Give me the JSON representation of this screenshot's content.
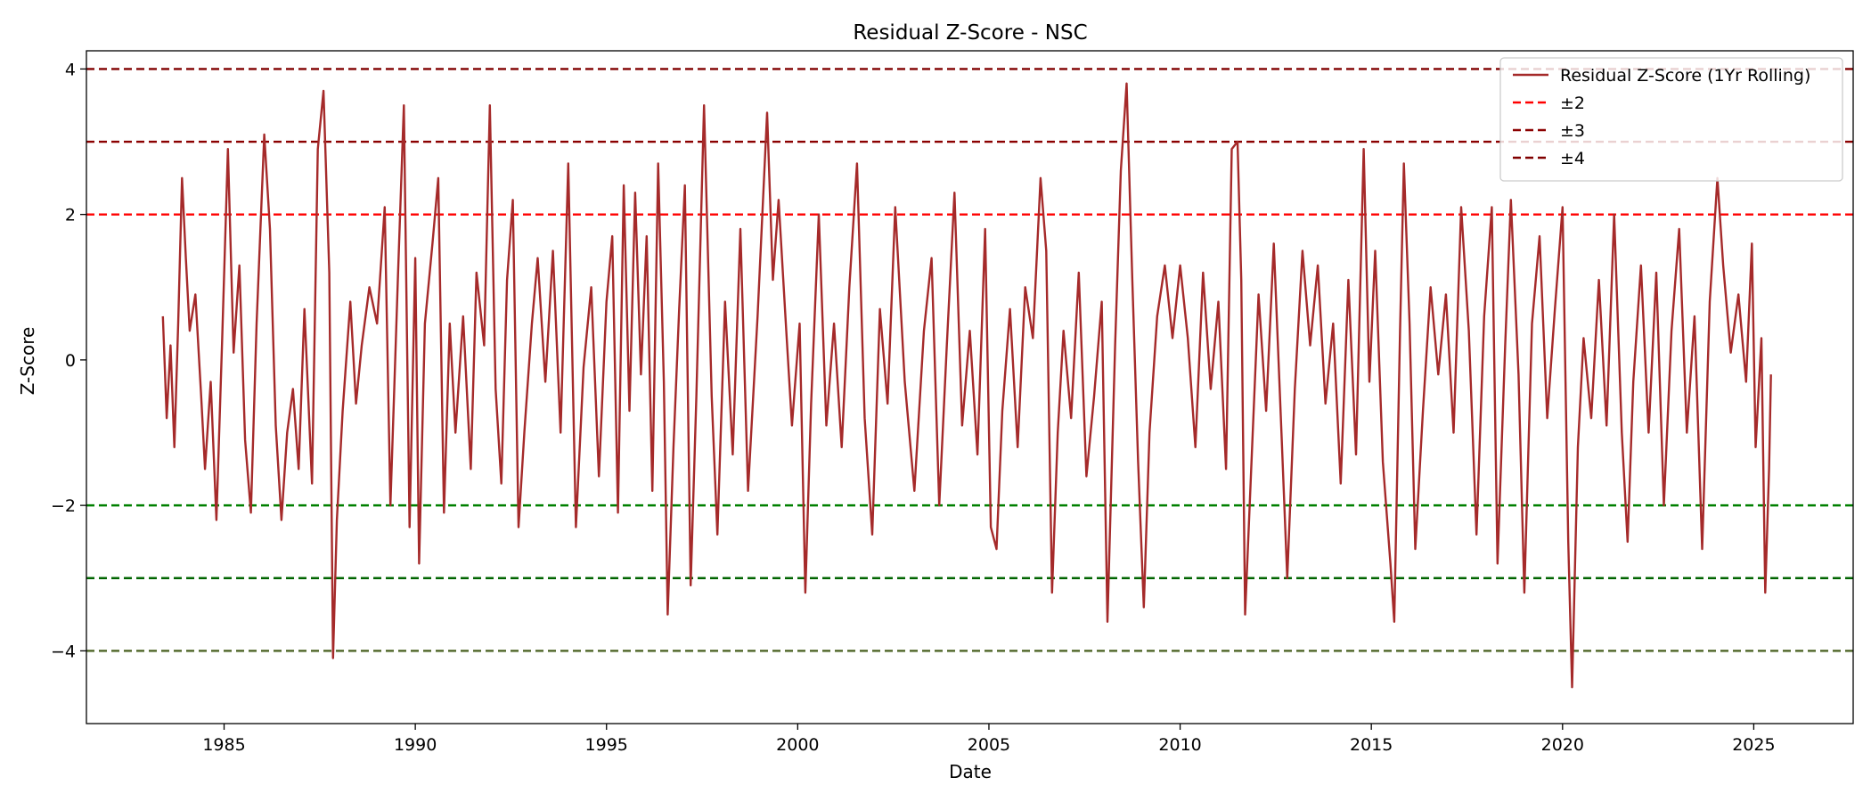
{
  "chart_data": {
    "type": "line",
    "title": "Residual Z-Score - NSC",
    "xlabel": "Date",
    "ylabel": "Z-Score",
    "xlim": [
      1981.4,
      2027.6
    ],
    "ylim": [
      -5.0,
      4.25
    ],
    "x_ticks": [
      1985,
      1990,
      1995,
      2000,
      2005,
      2010,
      2015,
      2020,
      2025
    ],
    "y_ticks": [
      -4,
      -2,
      0,
      2,
      4
    ],
    "y_tick_labels": [
      "−4",
      "−2",
      "0",
      "2",
      "4"
    ],
    "grid": false,
    "legend_position": "top-right",
    "legend": [
      {
        "label": "Residual Z-Score (1Yr Rolling)",
        "style": "solid",
        "color": "#a52a2a"
      },
      {
        "label": "±2",
        "style": "dashed",
        "color": "#ff0000"
      },
      {
        "label": "±3",
        "style": "dashed",
        "color": "#8b0000"
      },
      {
        "label": "±4",
        "style": "dashed",
        "color": "#800000"
      }
    ],
    "threshold_lines": [
      {
        "y": 4,
        "color": "#800000"
      },
      {
        "y": 3,
        "color": "#8b0000"
      },
      {
        "y": 2,
        "color": "#ff0000"
      },
      {
        "y": -2,
        "color": "#008000"
      },
      {
        "y": -3,
        "color": "#006400"
      },
      {
        "y": -4,
        "color": "#556b2f"
      }
    ],
    "series": [
      {
        "color": "#a52a2a",
        "points": [
          [
            1983.4,
            0.6
          ],
          [
            1983.5,
            -0.8
          ],
          [
            1983.6,
            0.2
          ],
          [
            1983.7,
            -1.2
          ],
          [
            1983.8,
            0.5
          ],
          [
            1983.9,
            2.5
          ],
          [
            1984.0,
            1.4
          ],
          [
            1984.1,
            0.4
          ],
          [
            1984.25,
            0.9
          ],
          [
            1984.4,
            -0.5
          ],
          [
            1984.5,
            -1.5
          ],
          [
            1984.65,
            -0.3
          ],
          [
            1984.8,
            -2.2
          ],
          [
            1984.95,
            0.3
          ],
          [
            1985.1,
            2.9
          ],
          [
            1985.25,
            0.1
          ],
          [
            1985.4,
            1.3
          ],
          [
            1985.55,
            -1.1
          ],
          [
            1985.7,
            -2.1
          ],
          [
            1985.85,
            0.5
          ],
          [
            1986.05,
            3.1
          ],
          [
            1986.2,
            1.8
          ],
          [
            1986.35,
            -0.9
          ],
          [
            1986.5,
            -2.2
          ],
          [
            1986.65,
            -1.0
          ],
          [
            1986.8,
            -0.4
          ],
          [
            1986.95,
            -1.5
          ],
          [
            1987.1,
            0.7
          ],
          [
            1987.3,
            -1.7
          ],
          [
            1987.45,
            2.9
          ],
          [
            1987.6,
            3.7
          ],
          [
            1987.75,
            1.2
          ],
          [
            1987.85,
            -4.1
          ],
          [
            1987.95,
            -2.2
          ],
          [
            1988.1,
            -0.7
          ],
          [
            1988.3,
            0.8
          ],
          [
            1988.45,
            -0.6
          ],
          [
            1988.6,
            0.2
          ],
          [
            1988.8,
            1.0
          ],
          [
            1989.0,
            0.5
          ],
          [
            1989.2,
            2.1
          ],
          [
            1989.35,
            -2.0
          ],
          [
            1989.55,
            1.2
          ],
          [
            1989.7,
            3.5
          ],
          [
            1989.85,
            -2.3
          ],
          [
            1990.0,
            1.4
          ],
          [
            1990.1,
            -2.8
          ],
          [
            1990.25,
            0.5
          ],
          [
            1990.45,
            1.6
          ],
          [
            1990.6,
            2.5
          ],
          [
            1990.75,
            -2.1
          ],
          [
            1990.9,
            0.5
          ],
          [
            1991.05,
            -1.0
          ],
          [
            1991.25,
            0.6
          ],
          [
            1991.45,
            -1.5
          ],
          [
            1991.6,
            1.2
          ],
          [
            1991.8,
            0.2
          ],
          [
            1991.95,
            3.5
          ],
          [
            1992.1,
            -0.4
          ],
          [
            1992.25,
            -1.7
          ],
          [
            1992.4,
            1.1
          ],
          [
            1992.55,
            2.2
          ],
          [
            1992.7,
            -2.3
          ],
          [
            1992.85,
            -1.0
          ],
          [
            1993.05,
            0.5
          ],
          [
            1993.2,
            1.4
          ],
          [
            1993.4,
            -0.3
          ],
          [
            1993.6,
            1.5
          ],
          [
            1993.8,
            -1.0
          ],
          [
            1994.0,
            2.7
          ],
          [
            1994.2,
            -2.3
          ],
          [
            1994.4,
            -0.1
          ],
          [
            1994.6,
            1.0
          ],
          [
            1994.8,
            -1.6
          ],
          [
            1995.0,
            0.8
          ],
          [
            1995.15,
            1.7
          ],
          [
            1995.3,
            -2.1
          ],
          [
            1995.45,
            2.4
          ],
          [
            1995.6,
            -0.7
          ],
          [
            1995.75,
            2.3
          ],
          [
            1995.9,
            -0.2
          ],
          [
            1996.05,
            1.7
          ],
          [
            1996.2,
            -1.8
          ],
          [
            1996.35,
            2.7
          ],
          [
            1996.5,
            -0.3
          ],
          [
            1996.6,
            -3.5
          ],
          [
            1996.75,
            -1.2
          ],
          [
            1996.9,
            0.7
          ],
          [
            1997.05,
            2.4
          ],
          [
            1997.2,
            -3.1
          ],
          [
            1997.35,
            -0.5
          ],
          [
            1997.55,
            3.5
          ],
          [
            1997.75,
            -0.5
          ],
          [
            1997.9,
            -2.4
          ],
          [
            1998.1,
            0.8
          ],
          [
            1998.3,
            -1.3
          ],
          [
            1998.5,
            1.8
          ],
          [
            1998.7,
            -1.8
          ],
          [
            1998.95,
            0.6
          ],
          [
            1999.2,
            3.4
          ],
          [
            1999.35,
            1.1
          ],
          [
            1999.5,
            2.2
          ],
          [
            1999.7,
            0.4
          ],
          [
            1999.85,
            -0.9
          ],
          [
            2000.05,
            0.5
          ],
          [
            2000.2,
            -3.2
          ],
          [
            2000.35,
            -0.6
          ],
          [
            2000.55,
            2.0
          ],
          [
            2000.75,
            -0.9
          ],
          [
            2000.95,
            0.5
          ],
          [
            2001.15,
            -1.2
          ],
          [
            2001.35,
            1.0
          ],
          [
            2001.55,
            2.7
          ],
          [
            2001.75,
            -0.8
          ],
          [
            2001.95,
            -2.4
          ],
          [
            2002.15,
            0.7
          ],
          [
            2002.35,
            -0.6
          ],
          [
            2002.55,
            2.1
          ],
          [
            2002.8,
            -0.3
          ],
          [
            2003.05,
            -1.8
          ],
          [
            2003.3,
            0.4
          ],
          [
            2003.5,
            1.4
          ],
          [
            2003.7,
            -2.0
          ],
          [
            2003.9,
            0.2
          ],
          [
            2004.1,
            2.3
          ],
          [
            2004.3,
            -0.9
          ],
          [
            2004.5,
            0.4
          ],
          [
            2004.7,
            -1.3
          ],
          [
            2004.9,
            1.8
          ],
          [
            2005.05,
            -2.3
          ],
          [
            2005.2,
            -2.6
          ],
          [
            2005.35,
            -0.7
          ],
          [
            2005.55,
            0.7
          ],
          [
            2005.75,
            -1.2
          ],
          [
            2005.95,
            1.0
          ],
          [
            2006.15,
            0.3
          ],
          [
            2006.35,
            2.5
          ],
          [
            2006.5,
            1.5
          ],
          [
            2006.65,
            -3.2
          ],
          [
            2006.8,
            -1.0
          ],
          [
            2006.95,
            0.4
          ],
          [
            2007.15,
            -0.8
          ],
          [
            2007.35,
            1.2
          ],
          [
            2007.55,
            -1.6
          ],
          [
            2007.75,
            -0.5
          ],
          [
            2007.95,
            0.8
          ],
          [
            2008.1,
            -3.6
          ],
          [
            2008.3,
            0.2
          ],
          [
            2008.45,
            2.6
          ],
          [
            2008.6,
            3.8
          ],
          [
            2008.75,
            1.1
          ],
          [
            2008.9,
            -1.4
          ],
          [
            2009.05,
            -3.4
          ],
          [
            2009.2,
            -1.0
          ],
          [
            2009.4,
            0.6
          ],
          [
            2009.6,
            1.3
          ],
          [
            2009.8,
            0.3
          ],
          [
            2010.0,
            1.3
          ],
          [
            2010.2,
            0.3
          ],
          [
            2010.4,
            -1.2
          ],
          [
            2010.6,
            1.2
          ],
          [
            2010.8,
            -0.4
          ],
          [
            2011.0,
            0.8
          ],
          [
            2011.2,
            -1.5
          ],
          [
            2011.35,
            2.9
          ],
          [
            2011.5,
            3.0
          ],
          [
            2011.6,
            1.1
          ],
          [
            2011.7,
            -3.5
          ],
          [
            2011.85,
            -1.6
          ],
          [
            2012.05,
            0.9
          ],
          [
            2012.25,
            -0.7
          ],
          [
            2012.45,
            1.6
          ],
          [
            2012.65,
            -1.0
          ],
          [
            2012.8,
            -3.0
          ],
          [
            2013.0,
            -0.4
          ],
          [
            2013.2,
            1.5
          ],
          [
            2013.4,
            0.2
          ],
          [
            2013.6,
            1.3
          ],
          [
            2013.8,
            -0.6
          ],
          [
            2014.0,
            0.5
          ],
          [
            2014.2,
            -1.7
          ],
          [
            2014.4,
            1.1
          ],
          [
            2014.6,
            -1.3
          ],
          [
            2014.8,
            2.9
          ],
          [
            2014.95,
            -0.3
          ],
          [
            2015.1,
            1.5
          ],
          [
            2015.3,
            -1.4
          ],
          [
            2015.5,
            -2.8
          ],
          [
            2015.6,
            -3.6
          ],
          [
            2015.75,
            0.4
          ],
          [
            2015.85,
            2.7
          ],
          [
            2016.0,
            0.5
          ],
          [
            2016.15,
            -2.6
          ],
          [
            2016.35,
            -0.7
          ],
          [
            2016.55,
            1.0
          ],
          [
            2016.75,
            -0.2
          ],
          [
            2016.95,
            0.9
          ],
          [
            2017.15,
            -1.0
          ],
          [
            2017.35,
            2.1
          ],
          [
            2017.55,
            0.4
          ],
          [
            2017.75,
            -2.4
          ],
          [
            2017.95,
            0.6
          ],
          [
            2018.15,
            2.1
          ],
          [
            2018.3,
            -2.8
          ],
          [
            2018.5,
            0.2
          ],
          [
            2018.65,
            2.2
          ],
          [
            2018.85,
            -0.2
          ],
          [
            2019.0,
            -3.2
          ],
          [
            2019.2,
            0.5
          ],
          [
            2019.4,
            1.7
          ],
          [
            2019.6,
            -0.8
          ],
          [
            2019.8,
            0.7
          ],
          [
            2020.0,
            2.1
          ],
          [
            2020.15,
            -2.5
          ],
          [
            2020.25,
            -4.5
          ],
          [
            2020.4,
            -1.2
          ],
          [
            2020.55,
            0.3
          ],
          [
            2020.75,
            -0.8
          ],
          [
            2020.95,
            1.1
          ],
          [
            2021.15,
            -0.9
          ],
          [
            2021.35,
            2.0
          ],
          [
            2021.55,
            -1.0
          ],
          [
            2021.7,
            -2.5
          ],
          [
            2021.85,
            -0.3
          ],
          [
            2022.05,
            1.3
          ],
          [
            2022.25,
            -1.0
          ],
          [
            2022.45,
            1.2
          ],
          [
            2022.65,
            -2.0
          ],
          [
            2022.85,
            0.4
          ],
          [
            2023.05,
            1.8
          ],
          [
            2023.25,
            -1.0
          ],
          [
            2023.45,
            0.6
          ],
          [
            2023.65,
            -2.6
          ],
          [
            2023.85,
            0.8
          ],
          [
            2024.05,
            2.5
          ],
          [
            2024.2,
            1.3
          ],
          [
            2024.4,
            0.1
          ],
          [
            2024.6,
            0.9
          ],
          [
            2024.8,
            -0.3
          ],
          [
            2024.95,
            1.6
          ],
          [
            2025.05,
            -1.2
          ],
          [
            2025.2,
            0.3
          ],
          [
            2025.3,
            -3.2
          ],
          [
            2025.4,
            -1.5
          ],
          [
            2025.45,
            -0.2
          ]
        ]
      }
    ]
  }
}
